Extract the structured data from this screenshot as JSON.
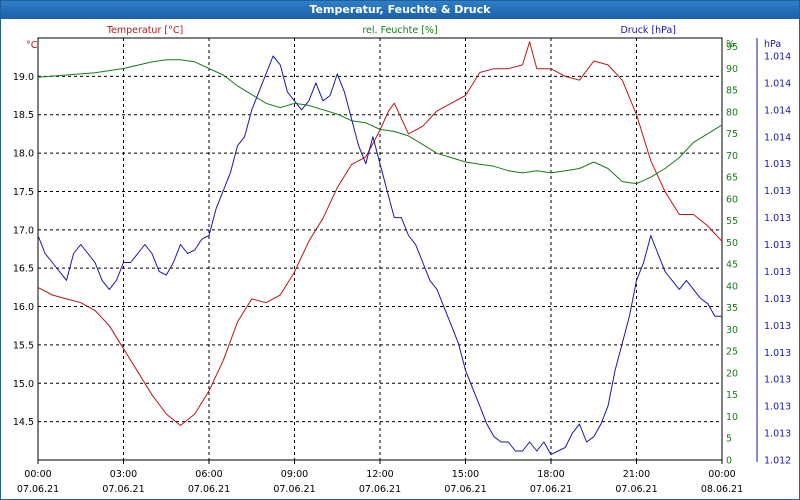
{
  "window": {
    "title": "Temperatur, Feuchte & Druck"
  },
  "chart_data": {
    "type": "line",
    "title": "Temperatur, Feuchte & Druck",
    "x_ticks": [
      {
        "time": "00:00",
        "date": "07.06.21",
        "h": 0
      },
      {
        "time": "03:00",
        "date": "07.06.21",
        "h": 3
      },
      {
        "time": "06:00",
        "date": "07.06.21",
        "h": 6
      },
      {
        "time": "09:00",
        "date": "07.06.21",
        "h": 9
      },
      {
        "time": "12:00",
        "date": "07.06.21",
        "h": 12
      },
      {
        "time": "15:00",
        "date": "07.06.21",
        "h": 15
      },
      {
        "time": "18:00",
        "date": "07.06.21",
        "h": 18
      },
      {
        "time": "21:00",
        "date": "07.06.21",
        "h": 21
      },
      {
        "time": "00:00",
        "date": "08.06.21",
        "h": 24
      }
    ],
    "xlim": [
      0,
      24
    ],
    "axes": {
      "temperature": {
        "unit": "°C",
        "ylim": [
          14.0,
          19.5
        ],
        "ticks": [
          "19.0",
          "18.5",
          "18.0",
          "17.5",
          "17.0",
          "16.5",
          "16.0",
          "15.5",
          "15.0",
          "14.5"
        ],
        "tick_values": [
          19.0,
          18.5,
          18.0,
          17.5,
          17.0,
          16.5,
          16.0,
          15.5,
          15.0,
          14.5
        ]
      },
      "humidity": {
        "unit": "%",
        "ylim": [
          0,
          97
        ],
        "ticks": [
          "%",
          "95",
          "90",
          "85",
          "80",
          "75",
          "70",
          "65",
          "60",
          "55",
          "50",
          "45",
          "40",
          "35",
          "30",
          "25",
          "20",
          "15",
          "10",
          "5",
          "0"
        ],
        "tick_values": [
          null,
          95,
          90,
          85,
          80,
          75,
          70,
          65,
          60,
          55,
          50,
          45,
          40,
          35,
          30,
          25,
          20,
          15,
          10,
          5,
          0
        ]
      },
      "pressure": {
        "unit": "hPa",
        "ylim": [
          1011.95,
          1014.3
        ],
        "ticks": [
          "hPa",
          "1.014",
          "1.014",
          "1.014",
          "1.014",
          "1.013",
          "1.013",
          "1.013",
          "1.013",
          "1.013",
          "1.013",
          "1.013",
          "1.013",
          "1.013",
          "1.013",
          "1.013",
          "1.012"
        ],
        "tick_values": [
          null,
          1014.2,
          1014.05,
          1013.9,
          1013.75,
          1013.6,
          1013.45,
          1013.3,
          1013.15,
          1013.0,
          1012.85,
          1012.7,
          1012.55,
          1012.4,
          1012.25,
          1012.1,
          1011.95
        ]
      }
    },
    "series": [
      {
        "name": "Temperatur [°C]",
        "color": "#b81818",
        "axis": "temperature",
        "x": [
          0,
          0.5,
          1,
          1.5,
          2,
          2.5,
          3,
          3.5,
          4,
          4.5,
          5,
          5.5,
          6,
          6.5,
          7,
          7.5,
          8,
          8.5,
          9,
          9.5,
          10,
          10.5,
          11,
          11.5,
          12,
          12.3,
          12.5,
          13,
          13.5,
          14,
          14.5,
          15,
          15.5,
          16,
          16.5,
          17,
          17.25,
          17.5,
          18,
          18.5,
          19,
          19.5,
          20,
          20.5,
          21,
          21.5,
          22,
          22.5,
          23,
          23.5,
          24
        ],
        "values": [
          16.25,
          16.15,
          16.1,
          16.05,
          15.95,
          15.75,
          15.45,
          15.15,
          14.85,
          14.6,
          14.45,
          14.6,
          14.9,
          15.3,
          15.8,
          16.1,
          16.05,
          16.15,
          16.45,
          16.85,
          17.15,
          17.55,
          17.85,
          17.95,
          18.3,
          18.55,
          18.65,
          18.25,
          18.35,
          18.55,
          18.65,
          18.75,
          19.05,
          19.1,
          19.1,
          19.15,
          19.45,
          19.1,
          19.1,
          19.0,
          18.95,
          19.2,
          19.15,
          18.95,
          18.5,
          17.9,
          17.5,
          17.2,
          17.2,
          17.05,
          16.85
        ]
      },
      {
        "name": "rel. Feuchte [%]",
        "color": "#1a7a1a",
        "axis": "humidity",
        "x": [
          0,
          1,
          2,
          3,
          4,
          4.5,
          5,
          5.5,
          6,
          6.5,
          7,
          7.5,
          8,
          8.5,
          9,
          9.5,
          10,
          10.5,
          11,
          11.5,
          12,
          12.5,
          13,
          13.5,
          14,
          14.5,
          15,
          15.5,
          16,
          16.5,
          17,
          17.5,
          18,
          18.5,
          19,
          19.5,
          20,
          20.5,
          21,
          21.5,
          22,
          22.5,
          23,
          23.5,
          24
        ],
        "values": [
          88,
          88.5,
          89,
          90,
          91.5,
          92,
          92,
          91.5,
          90,
          88.5,
          86,
          84,
          82,
          81,
          82,
          81.5,
          80.5,
          79.5,
          78,
          77.5,
          76,
          75.5,
          74.5,
          72.5,
          70.5,
          69.5,
          68.5,
          68,
          67.5,
          66.5,
          66,
          66.5,
          66,
          66.5,
          67,
          68.5,
          67,
          64,
          63.5,
          65,
          67,
          69.5,
          73,
          75,
          77
        ]
      },
      {
        "name": "Druck [hPa]",
        "color": "#1818a8",
        "axis": "pressure",
        "x": [
          0,
          0.25,
          0.5,
          0.75,
          1,
          1.25,
          1.5,
          1.75,
          2,
          2.25,
          2.5,
          2.75,
          3,
          3.25,
          3.5,
          3.75,
          4,
          4.25,
          4.5,
          4.75,
          5,
          5.25,
          5.5,
          5.75,
          6,
          6.25,
          6.5,
          6.75,
          7,
          7.25,
          7.5,
          7.75,
          8,
          8.25,
          8.5,
          8.75,
          9,
          9.25,
          9.5,
          9.75,
          10,
          10.25,
          10.5,
          10.75,
          11,
          11.25,
          11.5,
          11.75,
          12,
          12.25,
          12.5,
          12.75,
          13,
          13.25,
          13.5,
          13.75,
          14,
          14.25,
          14.5,
          14.75,
          15,
          15.25,
          15.5,
          15.75,
          16,
          16.25,
          16.5,
          16.75,
          17,
          17.25,
          17.5,
          17.75,
          18,
          18.25,
          18.5,
          18.75,
          19,
          19.25,
          19.5,
          19.75,
          20,
          20.25,
          20.5,
          20.75,
          21,
          21.25,
          21.5,
          21.75,
          22,
          22.25,
          22.5,
          22.75,
          23,
          23.25,
          23.5,
          23.75,
          24
        ],
        "values": [
          1013.2,
          1013.1,
          1013.05,
          1013.0,
          1012.95,
          1013.1,
          1013.15,
          1013.1,
          1013.05,
          1012.95,
          1012.9,
          1012.95,
          1013.05,
          1013.05,
          1013.1,
          1013.15,
          1013.1,
          1013.0,
          1012.98,
          1013.05,
          1013.15,
          1013.1,
          1013.12,
          1013.18,
          1013.2,
          1013.35,
          1013.45,
          1013.55,
          1013.7,
          1013.75,
          1013.9,
          1014.0,
          1014.1,
          1014.2,
          1014.15,
          1014.0,
          1013.95,
          1013.9,
          1013.95,
          1014.05,
          1013.95,
          1013.98,
          1014.1,
          1014.0,
          1013.85,
          1013.7,
          1013.6,
          1013.75,
          1013.6,
          1013.45,
          1013.3,
          1013.3,
          1013.2,
          1013.15,
          1013.05,
          1012.95,
          1012.9,
          1012.8,
          1012.7,
          1012.6,
          1012.45,
          1012.35,
          1012.25,
          1012.15,
          1012.08,
          1012.05,
          1012.05,
          1012.0,
          1012.0,
          1012.05,
          1012.0,
          1012.05,
          1011.98,
          1012.0,
          1012.02,
          1012.1,
          1012.15,
          1012.05,
          1012.08,
          1012.15,
          1012.25,
          1012.45,
          1012.6,
          1012.75,
          1012.95,
          1013.05,
          1013.2,
          1013.1,
          1013.0,
          1012.95,
          1012.9,
          1012.95,
          1012.9,
          1012.85,
          1012.82,
          1012.75,
          1012.75
        ]
      }
    ],
    "legend": "top, above plot area, one label per axis",
    "grid": true
  }
}
